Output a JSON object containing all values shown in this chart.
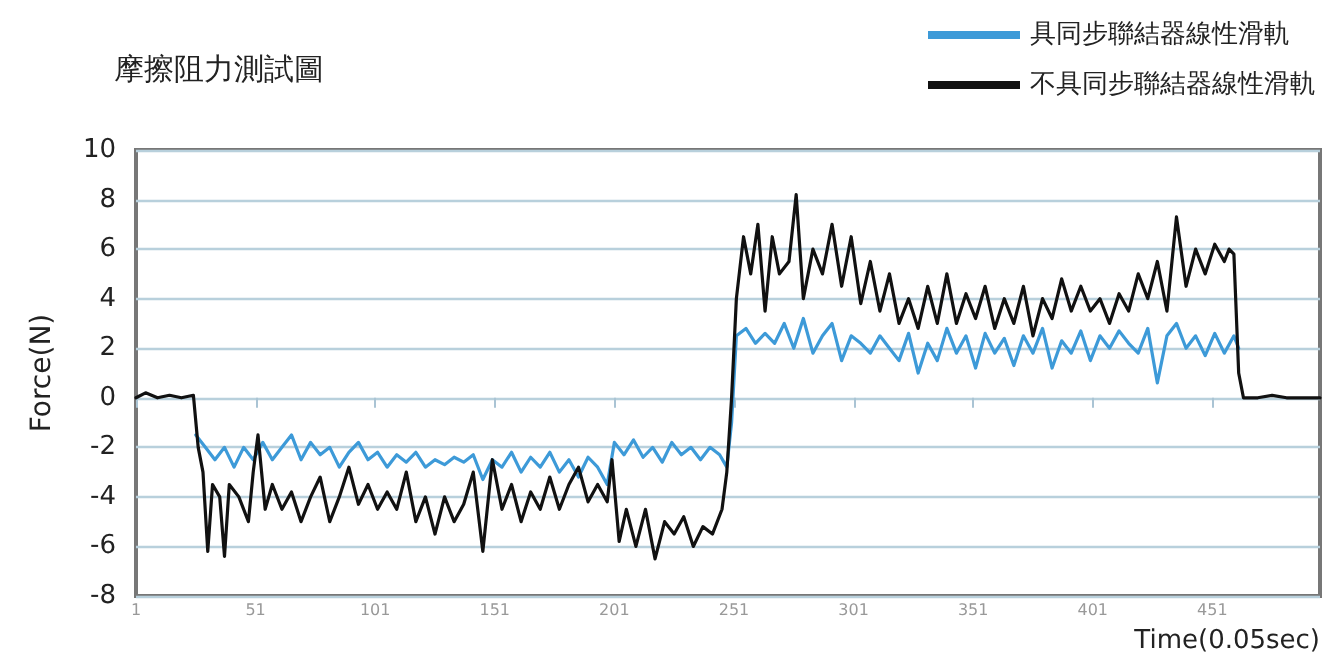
{
  "chart_data": {
    "type": "line",
    "title": "摩擦阻力測試圖",
    "xlabel": "Time(0.05sec)",
    "ylabel": "Force(N)",
    "xlim": [
      1,
      496
    ],
    "xticks": [
      1,
      51,
      101,
      151,
      201,
      251,
      301,
      351,
      401,
      451
    ],
    "ylim": [
      -8,
      10
    ],
    "yticks": [
      -8,
      -6,
      -4,
      -2,
      0,
      2,
      4,
      6,
      8,
      10
    ],
    "grid": "y",
    "legend": "top right",
    "marker": "none",
    "line_style": "solid",
    "series": [
      {
        "name": "具同步聯結器線性滑軌",
        "color": "#3d9ad8",
        "x": [
          26,
          30,
          34,
          38,
          42,
          46,
          50,
          54,
          58,
          62,
          66,
          70,
          74,
          78,
          82,
          86,
          90,
          94,
          98,
          102,
          106,
          110,
          114,
          118,
          122,
          126,
          130,
          134,
          138,
          142,
          146,
          150,
          154,
          158,
          162,
          166,
          170,
          174,
          178,
          182,
          186,
          190,
          194,
          198,
          201,
          205,
          209,
          213,
          217,
          221,
          225,
          229,
          233,
          237,
          241,
          245,
          248,
          250,
          252,
          256,
          260,
          264,
          268,
          272,
          276,
          280,
          284,
          288,
          292,
          296,
          300,
          304,
          308,
          312,
          316,
          320,
          324,
          328,
          332,
          336,
          340,
          344,
          348,
          352,
          356,
          360,
          364,
          368,
          372,
          376,
          380,
          384,
          388,
          392,
          396,
          400,
          404,
          408,
          412,
          416,
          420,
          424,
          428,
          432,
          436,
          440,
          444,
          448,
          452,
          456,
          460,
          462
        ],
        "values": [
          -1.5,
          -2,
          -2.5,
          -2,
          -2.8,
          -2,
          -2.5,
          -1.8,
          -2.5,
          -2,
          -1.5,
          -2.5,
          -1.8,
          -2.3,
          -2,
          -2.8,
          -2.2,
          -1.8,
          -2.5,
          -2.2,
          -2.8,
          -2.3,
          -2.6,
          -2.2,
          -2.8,
          -2.5,
          -2.7,
          -2.4,
          -2.6,
          -2.3,
          -3.3,
          -2.5,
          -2.8,
          -2.2,
          -3,
          -2.4,
          -2.8,
          -2.2,
          -3,
          -2.5,
          -3.2,
          -2.4,
          -2.8,
          -3.5,
          -1.8,
          -2.3,
          -1.7,
          -2.4,
          -2,
          -2.6,
          -1.8,
          -2.3,
          -2,
          -2.5,
          -2,
          -2.3,
          -2.8,
          -1,
          2.5,
          2.8,
          2.2,
          2.6,
          2.2,
          3,
          2,
          3.2,
          1.8,
          2.5,
          3,
          1.5,
          2.5,
          2.2,
          1.8,
          2.5,
          2,
          1.5,
          2.6,
          1,
          2.2,
          1.5,
          2.8,
          1.8,
          2.5,
          1.2,
          2.6,
          1.8,
          2.4,
          1.3,
          2.5,
          1.8,
          2.8,
          1.2,
          2.3,
          1.8,
          2.7,
          1.5,
          2.5,
          2,
          2.7,
          2.2,
          1.8,
          2.8,
          0.6,
          2.5,
          3,
          2,
          2.5,
          1.7,
          2.6,
          1.8,
          2.5,
          2
        ]
      },
      {
        "name": "不具同步聯結器線性滑軌",
        "color": "#111111",
        "x": [
          1,
          5,
          10,
          15,
          20,
          25,
          27,
          29,
          31,
          33,
          36,
          38,
          40,
          44,
          48,
          50,
          52,
          55,
          58,
          62,
          66,
          70,
          74,
          78,
          82,
          86,
          90,
          94,
          98,
          102,
          106,
          110,
          114,
          118,
          122,
          126,
          130,
          134,
          138,
          142,
          146,
          150,
          154,
          158,
          162,
          166,
          170,
          174,
          178,
          182,
          186,
          190,
          194,
          198,
          200,
          203,
          206,
          210,
          214,
          218,
          222,
          226,
          230,
          234,
          238,
          242,
          246,
          248,
          250,
          252,
          255,
          258,
          261,
          264,
          267,
          270,
          274,
          277,
          280,
          284,
          288,
          292,
          296,
          300,
          304,
          308,
          312,
          316,
          320,
          324,
          328,
          332,
          336,
          340,
          344,
          348,
          352,
          356,
          360,
          364,
          368,
          372,
          376,
          380,
          384,
          388,
          392,
          396,
          400,
          404,
          408,
          412,
          416,
          420,
          424,
          428,
          432,
          436,
          440,
          444,
          448,
          452,
          456,
          458,
          460,
          462,
          464,
          470,
          476,
          482,
          490,
          496
        ],
        "values": [
          0,
          0.2,
          0,
          0.1,
          0,
          0.1,
          -2,
          -3,
          -6.2,
          -3.5,
          -4,
          -6.4,
          -3.5,
          -4,
          -5,
          -3,
          -1.5,
          -4.5,
          -3.5,
          -4.5,
          -3.8,
          -5,
          -4,
          -3.2,
          -5,
          -4,
          -2.8,
          -4.3,
          -3.5,
          -4.5,
          -3.8,
          -4.5,
          -3,
          -5,
          -4,
          -5.5,
          -4,
          -5,
          -4.3,
          -3,
          -6.2,
          -2.5,
          -4.5,
          -3.5,
          -5,
          -3.8,
          -4.5,
          -3.2,
          -4.5,
          -3.5,
          -2.8,
          -4.2,
          -3.5,
          -4.2,
          -2.5,
          -5.8,
          -4.5,
          -6,
          -4.5,
          -6.5,
          -5,
          -5.5,
          -4.8,
          -6,
          -5.2,
          -5.5,
          -4.5,
          -3,
          0,
          4,
          6.5,
          5,
          7,
          3.5,
          6.5,
          5,
          5.5,
          8.2,
          4,
          6,
          5,
          7,
          4.5,
          6.5,
          3.8,
          5.5,
          3.5,
          5,
          3,
          4,
          2.8,
          4.5,
          3,
          5,
          3,
          4.2,
          3.2,
          4.5,
          2.8,
          4,
          3,
          4.5,
          2.5,
          4,
          3.2,
          4.8,
          3.5,
          4.5,
          3.5,
          4,
          3,
          4.2,
          3.5,
          5,
          4,
          5.5,
          3.5,
          7.3,
          4.5,
          6,
          5,
          6.2,
          5.5,
          6,
          5.8,
          1,
          0,
          0,
          0.1,
          0,
          0,
          0
        ]
      }
    ]
  }
}
